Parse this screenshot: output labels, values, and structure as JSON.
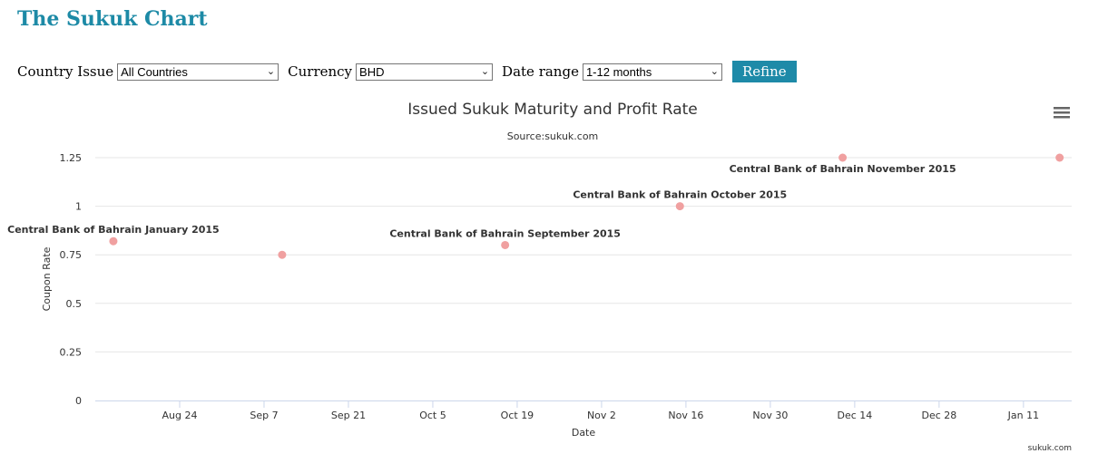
{
  "header": {
    "title": "The Sukuk Chart"
  },
  "filters": {
    "country_label": "Country Issue",
    "country_value": "All Countries",
    "currency_label": "Currency",
    "currency_value": "BHD",
    "daterange_label": "Date range",
    "daterange_value": "1-12 months",
    "refine_label": "Refine"
  },
  "icons": {
    "menu": "hamburger-menu-icon",
    "dropdown": "chevron-down-icon"
  },
  "colors": {
    "brand": "#1d8aa6",
    "button": "#1e8aa8",
    "point": "#f0a0a0"
  },
  "credit": "sukuk.com",
  "chart_data": {
    "type": "scatter",
    "title": "Issued Sukuk Maturity and Profit Rate",
    "subtitle": "Source:sukuk.com",
    "xlabel": "Date",
    "ylabel": "Coupon Rate",
    "ylim": [
      0,
      1.25
    ],
    "yticks": [
      "0",
      "0.25",
      "0.5",
      "0.75",
      "1",
      "1.25"
    ],
    "xlim": [
      "Aug 10",
      "Jan 19"
    ],
    "xticks": [
      "Aug 24",
      "Sep 7",
      "Sep 21",
      "Oct 5",
      "Oct 19",
      "Nov 2",
      "Nov 16",
      "Nov 30",
      "Dec 14",
      "Dec 28",
      "Jan 11"
    ],
    "grid": true,
    "points": [
      {
        "x": "Aug 13",
        "y": 0.82,
        "label": "Central Bank of Bahrain January 2015"
      },
      {
        "x": "Sep 10",
        "y": 0.75,
        "label": ""
      },
      {
        "x": "Oct 17",
        "y": 0.8,
        "label": "Central Bank of Bahrain September 2015"
      },
      {
        "x": "Nov 15",
        "y": 1.0,
        "label": "Central Bank of Bahrain October 2015"
      },
      {
        "x": "Dec 12",
        "y": 1.25,
        "label": "Central Bank of Bahrain November 2015"
      },
      {
        "x": "Jan 17",
        "y": 1.25,
        "label": ""
      }
    ]
  }
}
